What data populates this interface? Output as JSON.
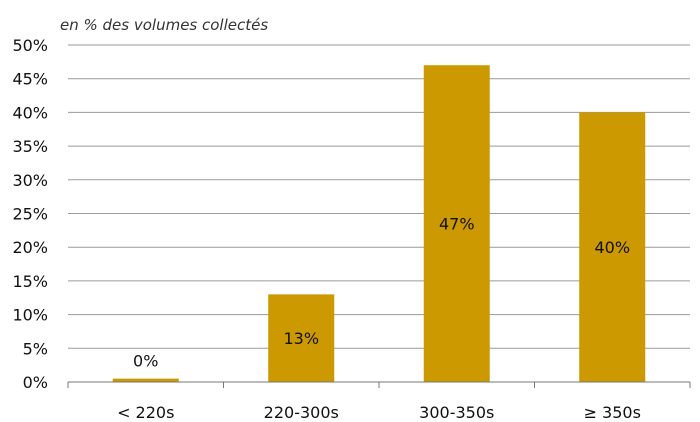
{
  "chart_data": {
    "type": "bar",
    "subtitle": "en % des volumes collectés",
    "categories": [
      "< 220s",
      "220-300s",
      "300-350s",
      "≥ 350s"
    ],
    "values": [
      0.5,
      13,
      47,
      40
    ],
    "data_labels": [
      "0%",
      "13%",
      "47%",
      "40%"
    ],
    "ylim": [
      0,
      50
    ],
    "yticks": [
      0,
      5,
      10,
      15,
      20,
      25,
      30,
      35,
      40,
      45,
      50
    ],
    "ytick_labels": [
      "0%",
      "5%",
      "10%",
      "15%",
      "20%",
      "25%",
      "30%",
      "35%",
      "40%",
      "45%",
      "50%"
    ],
    "grid": true,
    "legend": "none",
    "bar_color": "#CC9900"
  }
}
